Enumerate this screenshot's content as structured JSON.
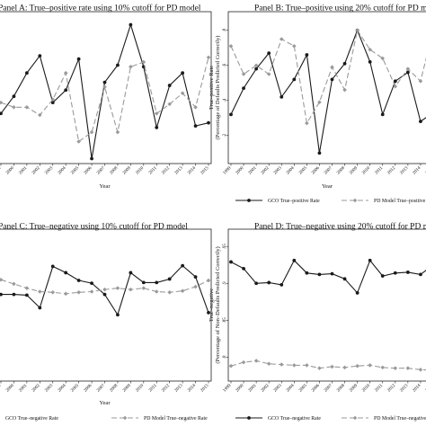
{
  "colors": {
    "gco": "#1a1a1a",
    "pd": "#9a9a9a",
    "frame": "#222222"
  },
  "chart_data": [
    {
      "type": "line",
      "title": "Panel A: True–positive rate using 10% cutoff for PD model",
      "xlabel": "Year",
      "ylabel": "",
      "x": [
        "1999",
        "2000",
        "2001",
        "2002",
        "2003",
        "2004",
        "2005",
        "2006",
        "2007",
        "2008",
        "2009",
        "2010",
        "2011",
        "2012",
        "2013",
        "2014",
        "2015"
      ],
      "ylim": [
        0.05,
        0.95
      ],
      "yticks": [],
      "grid": false,
      "legend": "none",
      "series": [
        {
          "name": "GCO True–positive Rate",
          "values": [
            0.36,
            0.47,
            0.62,
            0.73,
            0.43,
            0.51,
            0.71,
            0.07,
            0.56,
            0.67,
            0.93,
            0.66,
            0.27,
            0.54,
            0.62,
            0.28,
            0.3
          ]
        },
        {
          "name": "PD Model True–positive Rate",
          "values": [
            0.43,
            0.4,
            0.4,
            0.35,
            0.45,
            0.62,
            0.18,
            0.24,
            0.53,
            0.24,
            0.66,
            0.69,
            0.36,
            0.42,
            0.49,
            0.4,
            0.72
          ]
        }
      ]
    },
    {
      "type": "line",
      "title": "Panel B: True–positive using 20% cutoff for PD m",
      "xlabel": "Year",
      "ylabel": "True–positive Rate",
      "ylabel2": "(Percentage of Defaults Predicted Correctly)",
      "x": [
        "1999",
        "2000",
        "2001",
        "2002",
        "2003",
        "2004",
        "2005",
        "2006",
        "2007",
        "2008",
        "2009",
        "2010",
        "2011",
        "2012",
        "2013",
        "2014",
        "2015"
      ],
      "ylim": [
        0.05,
        0.85
      ],
      "yticks": [
        ".8",
        ".6",
        ".4",
        ".2"
      ],
      "grid": false,
      "legend": "bottom",
      "series": [
        {
          "name": "GCO True–positive Rate",
          "values": [
            0.32,
            0.47,
            0.58,
            0.67,
            0.42,
            0.52,
            0.66,
            0.1,
            0.52,
            0.61,
            0.8,
            0.62,
            0.32,
            0.51,
            0.56,
            0.28,
            0.33
          ]
        },
        {
          "name": "PD Model True–positive Rate",
          "values": [
            0.71,
            0.55,
            0.6,
            0.55,
            0.75,
            0.71,
            0.27,
            0.39,
            0.59,
            0.46,
            0.8,
            0.69,
            0.64,
            0.48,
            0.58,
            0.51,
            0.8
          ]
        }
      ]
    },
    {
      "type": "line",
      "title": "Panel C: True–negative using 10% cutoff for PD model",
      "xlabel": "Year",
      "ylabel": "",
      "x": [
        "1999",
        "2000",
        "2001",
        "2002",
        "2003",
        "2004",
        "2005",
        "2006",
        "2007",
        "2008",
        "2009",
        "2010",
        "2011",
        "2012",
        "2013",
        "2014",
        "2015"
      ],
      "ylim": [
        0.8,
        1.0
      ],
      "yticks": [],
      "grid": false,
      "legend": "bottom",
      "series": [
        {
          "name": "GCO True–negative Rate",
          "values": [
            0.921,
            0.921,
            0.92,
            0.902,
            0.961,
            0.952,
            0.941,
            0.937,
            0.921,
            0.892,
            0.952,
            0.938,
            0.938,
            0.943,
            0.962,
            0.946,
            0.895
          ]
        },
        {
          "name": "PD Model True–negative Rate",
          "values": [
            0.942,
            0.936,
            0.93,
            0.925,
            0.924,
            0.922,
            0.924,
            0.925,
            0.928,
            0.93,
            0.928,
            0.93,
            0.925,
            0.924,
            0.926,
            0.932,
            0.941
          ]
        }
      ]
    },
    {
      "type": "line",
      "title": "Panel D: True–negative using 20% cutoff for PD m",
      "xlabel": "",
      "ylabel": "True–negative",
      "ylabel2": "(Percentage of Non–Defaults Predicted Correctly)",
      "x": [
        "1999",
        "2000",
        "2001",
        "2002",
        "2003",
        "2004",
        "2005",
        "2006",
        "2007",
        "2008",
        "2009",
        "2010",
        "2011",
        "2012",
        "2013",
        "2014",
        "2015"
      ],
      "ylim": [
        0.77,
        0.96
      ],
      "yticks": [
        ".95",
        ".9",
        ".85",
        ".8"
      ],
      "grid": false,
      "legend": "bottom",
      "series": [
        {
          "name": "GCO True–negative Rate",
          "values": [
            0.929,
            0.92,
            0.9,
            0.901,
            0.898,
            0.931,
            0.914,
            0.912,
            0.913,
            0.906,
            0.887,
            0.931,
            0.91,
            0.914,
            0.915,
            0.912,
            0.925
          ]
        },
        {
          "name": "PD Model True–negative Rate",
          "values": [
            0.788,
            0.793,
            0.795,
            0.791,
            0.79,
            0.789,
            0.789,
            0.785,
            0.787,
            0.786,
            0.788,
            0.789,
            0.786,
            0.785,
            0.785,
            0.783,
            0.782
          ]
        }
      ]
    }
  ]
}
